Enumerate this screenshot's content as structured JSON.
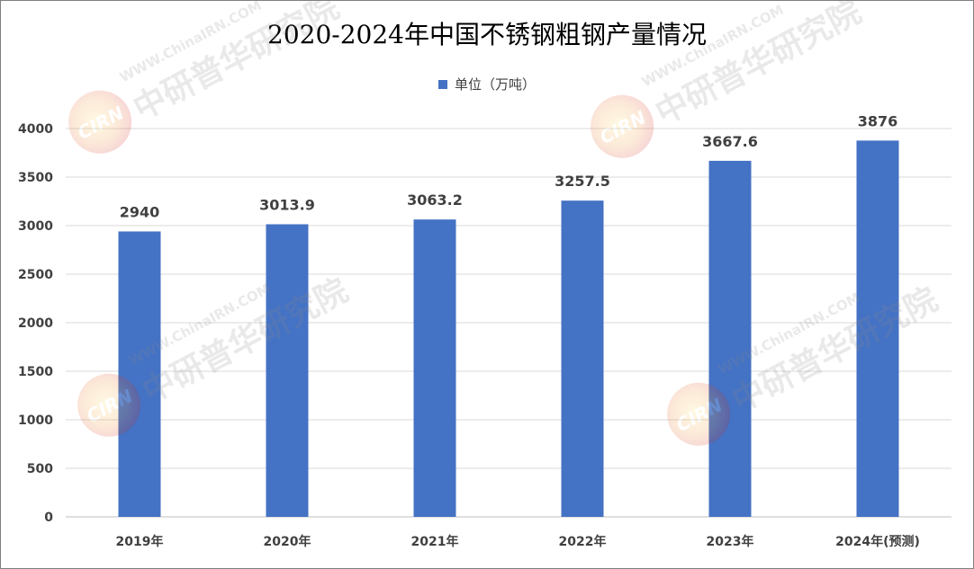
{
  "chart_data": {
    "type": "bar",
    "title": "2020-2024年中国不锈钢粗钢产量情况",
    "legend": {
      "label": "单位（万吨）",
      "position": "top"
    },
    "categories": [
      "2019年",
      "2020年",
      "2021年",
      "2022年",
      "2023年",
      "2024年(预测)"
    ],
    "series": [
      {
        "name": "单位（万吨）",
        "values": [
          2940,
          3013.9,
          3063.2,
          3257.5,
          3667.6,
          3876
        ],
        "color": "#4472c4"
      }
    ],
    "data_labels": [
      "2940",
      "3013.9",
      "3063.2",
      "3257.5",
      "3667.6",
      "3876"
    ],
    "ylim": [
      0,
      4000
    ],
    "y_ticks": [
      0,
      500,
      1000,
      1500,
      2000,
      2500,
      3000,
      3500,
      4000
    ],
    "grid": true
  },
  "watermark": {
    "logo": "CIRN",
    "url": "WWW.ChinaIRN.COM",
    "name": "中研普华研究院"
  }
}
